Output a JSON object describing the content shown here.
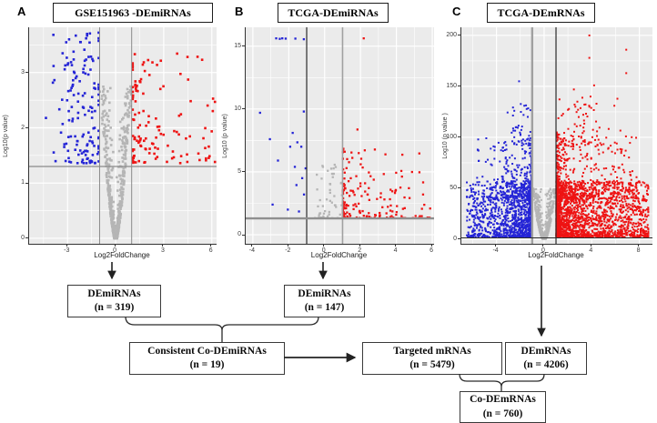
{
  "colors": {
    "up": "#ee1313",
    "down": "#2424d6",
    "ns": "#b5b5b5",
    "panel_bg": "#ebebeb",
    "grid": "#ffffff",
    "axis_text": "#3c3c3c",
    "box_border": "#3a3a3a"
  },
  "chart_data": [
    {
      "id": "A",
      "panel_letter": "A",
      "type": "scatter",
      "subtype": "volcano",
      "title": "GSE151963 -DEmiRNAs",
      "xlabel": "Log2FoldChange",
      "ylabel": "Log10(p value)",
      "xlim": [
        -5.4,
        6.3
      ],
      "ylim": [
        -0.1,
        3.82
      ],
      "xticks": [
        -3,
        0,
        3,
        6
      ],
      "yticks": [
        0,
        1,
        2,
        3
      ],
      "grid": true,
      "legend": "none",
      "n_de": 319,
      "thresholds": {
        "vlines": [
          {
            "x": -1,
            "color": "#8a8a8a",
            "w": 1
          },
          {
            "x": 1,
            "color": "#8a8a8a",
            "w": 1
          }
        ],
        "hlines": [
          {
            "y": 1.3,
            "color": "#8a8a8a",
            "w": 1.2
          }
        ]
      },
      "point_groups": [
        {
          "color": "ns",
          "type": "funnel",
          "n": 780,
          "yscale": 2.75,
          "yexp": 3.1,
          "w0": 0.07,
          "w1": 0.95,
          "wexp": 0.72,
          "edge": 0.32
        },
        {
          "color": "down",
          "type": "cluster",
          "n": 150,
          "x": {
            "type": "normal",
            "mean": -2.0,
            "sd": 0.85,
            "min": -4.35,
            "max": -1.06
          },
          "y": {
            "type": "power",
            "base": 1.36,
            "scale": 2.4,
            "exp": 1.7,
            "max": 3.78
          }
        },
        {
          "color": "up",
          "type": "cluster",
          "n": 135,
          "x": {
            "type": "power",
            "base": 1.06,
            "scale": 5.2,
            "exp": 2.6,
            "max": 6.2
          },
          "y": {
            "type": "power",
            "base": 1.36,
            "scale": 2.1,
            "exp": 1.8
          }
        }
      ]
    },
    {
      "id": "B",
      "panel_letter": "B",
      "type": "scatter",
      "subtype": "volcano",
      "title": "TCGA-DEmiRNAs",
      "xlabel": "Log2FoldChange",
      "ylabel": "Log10 (p value)",
      "xlim": [
        -4.4,
        6.1
      ],
      "ylim": [
        -0.72,
        16.5
      ],
      "xticks": [
        -4,
        -2,
        0,
        2,
        4,
        6
      ],
      "yticks": [
        0,
        5,
        10,
        15
      ],
      "grid": true,
      "legend": "none",
      "n_de": 147,
      "thresholds": {
        "vlines": [
          {
            "x": -1,
            "color": "#2a2a2a",
            "w": 1.2
          },
          {
            "x": 1,
            "color": "#a0a0a0",
            "w": 1.6
          }
        ],
        "hlines": [
          {
            "y": 1.3,
            "color": "#8f8f8f",
            "w": 2.4
          }
        ]
      },
      "point_groups": [
        {
          "color": "ns",
          "type": "cluster",
          "n": 52,
          "x": {
            "type": "uniform",
            "min": -0.55,
            "max": 1.0
          },
          "y": {
            "type": "power",
            "base": 1.32,
            "scale": 4.3,
            "exp": 2.4
          }
        },
        {
          "color": "down",
          "type": "points",
          "points": [
            [
              -2.7,
              15.62
            ],
            [
              -2.5,
              15.58
            ],
            [
              -2.36,
              15.62
            ],
            [
              -2.17,
              15.6
            ],
            [
              -1.63,
              15.6
            ],
            [
              -1.16,
              15.55
            ],
            [
              -3.6,
              9.7
            ],
            [
              -1.16,
              9.8
            ],
            [
              -3.05,
              7.6
            ],
            [
              -1.78,
              8.1
            ],
            [
              -1.52,
              7.35
            ],
            [
              -1.92,
              7.0
            ],
            [
              -1.3,
              7.0
            ],
            [
              -1.66,
              5.4
            ],
            [
              -1.06,
              5.28
            ],
            [
              -1.57,
              3.95
            ],
            [
              -2.05,
              2.0
            ],
            [
              -1.43,
              1.85
            ],
            [
              -2.6,
              5.9
            ],
            [
              -1.25,
              4.5
            ],
            [
              -2.9,
              2.4
            ],
            [
              -1.15,
              3.2
            ]
          ]
        },
        {
          "color": "up",
          "type": "points",
          "points": [
            [
              2.18,
              15.62
            ],
            [
              1.83,
              8.37
            ]
          ]
        },
        {
          "color": "up",
          "type": "cluster",
          "n": 175,
          "x": {
            "type": "power",
            "base": 1.02,
            "scale": 5.5,
            "exp": 2.7,
            "max": 6.45
          },
          "y": {
            "type": "power",
            "base": 1.33,
            "scale": 5.6,
            "exp": 2.8
          }
        }
      ]
    },
    {
      "id": "C",
      "panel_letter": "C",
      "type": "scatter",
      "subtype": "volcano",
      "title": "TCGA-DEmRNAs",
      "xlabel": "Log2FoldChange",
      "ylabel": "Log10 (p value )",
      "xlim": [
        -6.95,
        9.1
      ],
      "ylim": [
        -4.5,
        208
      ],
      "xticks": [
        -4,
        0,
        4,
        8
      ],
      "yticks": [
        0,
        50,
        100,
        150,
        200
      ],
      "grid": true,
      "legend": "none",
      "n_de": 4206,
      "thresholds": {
        "vlines": [
          {
            "x": -1,
            "color": "#a0a0a0",
            "w": 2.4
          },
          {
            "x": 1,
            "color": "#2a2a2a",
            "w": 1.2
          }
        ],
        "hlines": [
          {
            "y": 1.3,
            "color": "#2a2a2a",
            "w": 1.1
          }
        ]
      },
      "point_groups": [
        {
          "color": "ns",
          "type": "funnel",
          "n": 950,
          "yscale": 50,
          "yexp": 3.2,
          "w0": 0.08,
          "w1": 0.92,
          "wexp": 0.6,
          "edge": 0.35
        },
        {
          "color": "down",
          "type": "cluster",
          "n": 1200,
          "x": {
            "type": "power",
            "base": -1.03,
            "scale": -5.5,
            "exp": 2.2,
            "min": -6.7
          },
          "y": {
            "type": "power",
            "base": 2,
            "scale": 55,
            "exp": 1.6
          }
        },
        {
          "color": "down",
          "type": "cluster",
          "n": 260,
          "x": {
            "type": "power",
            "base": -1.05,
            "scale": -4.6,
            "exp": 2.4,
            "min": -6.3
          },
          "y": {
            "type": "power",
            "base": 40,
            "scale": 60,
            "exp": 2.0
          }
        },
        {
          "color": "down",
          "type": "cluster",
          "n": 45,
          "x": {
            "type": "normal",
            "mean": -2.1,
            "sd": 0.55,
            "min": -3.6,
            "max": -1.15
          },
          "y": {
            "type": "power",
            "base": 92,
            "scale": 42,
            "exp": 1.6
          }
        },
        {
          "color": "down",
          "type": "points",
          "points": [
            [
              -2.1,
              155
            ]
          ]
        },
        {
          "color": "up",
          "type": "cluster",
          "n": 1900,
          "x": {
            "type": "power",
            "base": 1.03,
            "scale": 7.8,
            "exp": 2.2,
            "max": 8.75
          },
          "y": {
            "type": "power",
            "base": 2,
            "scale": 55,
            "exp": 1.6
          }
        },
        {
          "color": "up",
          "type": "cluster",
          "n": 430,
          "x": {
            "type": "power",
            "base": 1.05,
            "scale": 6.8,
            "exp": 2.4,
            "max": 8.3
          },
          "y": {
            "type": "power",
            "base": 40,
            "scale": 65,
            "exp": 2.0
          }
        },
        {
          "color": "up",
          "type": "cluster",
          "n": 70,
          "x": {
            "type": "normal",
            "mean": 3.2,
            "sd": 1.2,
            "min": 1.2,
            "max": 6.5
          },
          "y": {
            "type": "power",
            "base": 92,
            "scale": 48,
            "exp": 1.6
          }
        },
        {
          "color": "up",
          "type": "points",
          "points": [
            [
              3.8,
              200
            ],
            [
              6.9,
              186
            ],
            [
              3.8,
              178
            ],
            [
              6.9,
              163
            ],
            [
              4.2,
              151
            ],
            [
              3.9,
              140
            ],
            [
              4.4,
              133
            ],
            [
              2.5,
              147
            ],
            [
              5.9,
              131
            ]
          ]
        }
      ]
    }
  ],
  "flowchart": {
    "boxes": [
      {
        "id": "gse-demirnas",
        "lines": [
          "DEmiRNAs",
          "(n = 319)"
        ]
      },
      {
        "id": "tcga-demirnas",
        "lines": [
          "DEmiRNAs",
          "(n = 147)"
        ]
      },
      {
        "id": "consistent-co-demirnas",
        "lines": [
          "Consistent Co-DEmiRNAs",
          "(n = 19)"
        ]
      },
      {
        "id": "targeted-mrnas",
        "lines": [
          "Targeted mRNAs",
          "(n = 5479)"
        ]
      },
      {
        "id": "demrnas",
        "lines": [
          "DEmRNAs",
          "(n = 4206)"
        ]
      },
      {
        "id": "co-demrnas",
        "lines": [
          "Co-DEmRNAs",
          "(n = 760)"
        ]
      }
    ]
  }
}
